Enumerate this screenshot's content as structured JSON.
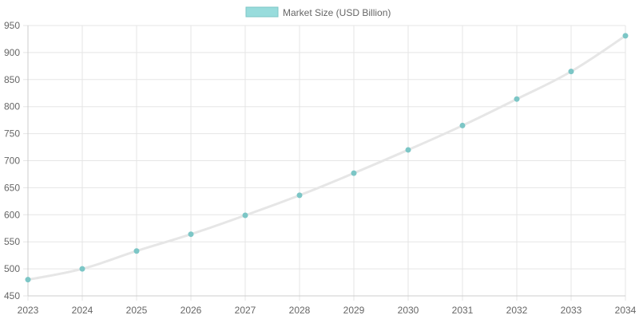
{
  "legend": {
    "label": "Market Size (USD Billion)",
    "position": "top"
  },
  "colors": {
    "line": "#e6e6e6",
    "point": "#7cc6c6",
    "legend_fill": "#98dcdc",
    "legend_border": "#7cc6c6",
    "grid": "#e5e5e5",
    "axis": "#cccccc",
    "tick_text": "#666666"
  },
  "chart_data": {
    "type": "line",
    "categories": [
      "2023",
      "2024",
      "2025",
      "2026",
      "2027",
      "2028",
      "2029",
      "2030",
      "2031",
      "2032",
      "2033",
      "2034"
    ],
    "series": [
      {
        "name": "Market Size (USD Billion)",
        "values": [
          480,
          500,
          533,
          564,
          599,
          636,
          677,
          720,
          765,
          814,
          865,
          931
        ]
      }
    ],
    "title": "",
    "xlabel": "",
    "ylabel": "",
    "ylim": [
      450,
      950
    ],
    "yticks": [
      450,
      500,
      550,
      600,
      650,
      700,
      750,
      800,
      850,
      900,
      950
    ],
    "grid": true,
    "smooth": true
  }
}
